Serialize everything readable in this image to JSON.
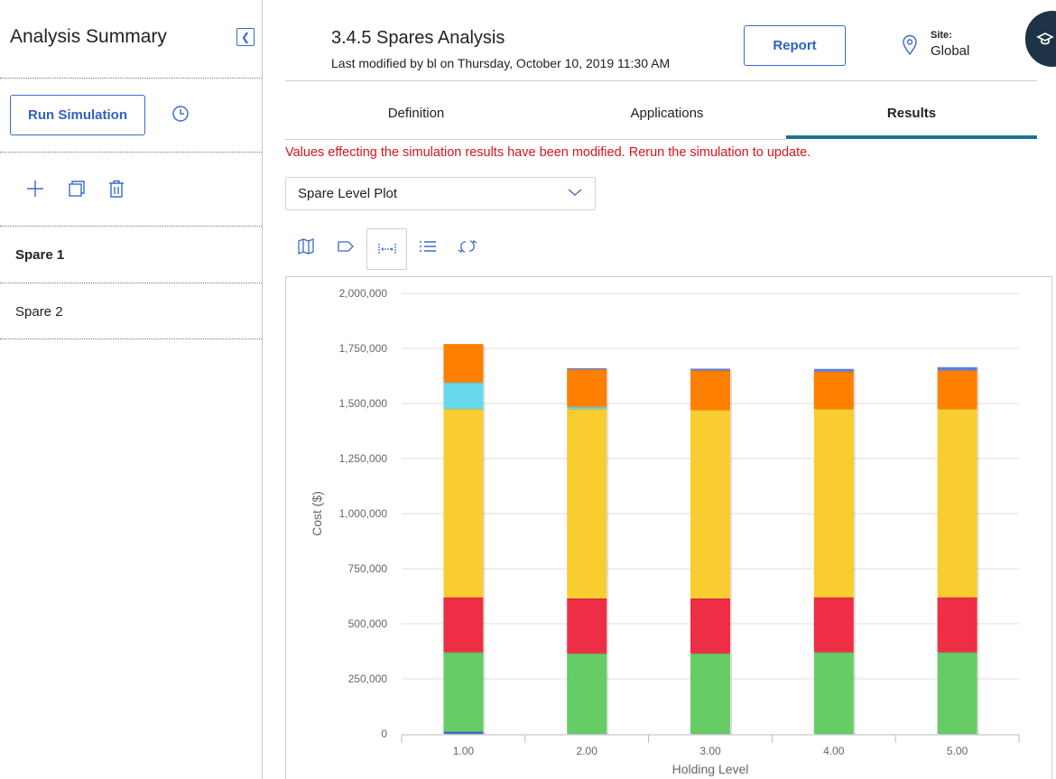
{
  "sidebar": {
    "title": "Analysis Summary",
    "run_label": "Run Simulation",
    "items": [
      {
        "label": "Spare 1",
        "active": true
      },
      {
        "label": "Spare 2",
        "active": false
      }
    ]
  },
  "header": {
    "title": "3.4.5 Spares Analysis",
    "subtitle": "Last modified by bl on Thursday, October 10, 2019 11:30 AM",
    "report_label": "Report",
    "site_label": "Site:",
    "site_value": "Global"
  },
  "tabs": [
    {
      "label": "Definition",
      "active": false
    },
    {
      "label": "Applications",
      "active": false
    },
    {
      "label": "Results",
      "active": true
    }
  ],
  "warning": "Values effecting the simulation results have been modified. Rerun the simulation to update.",
  "plot_select": {
    "value": "Spare Level Plot"
  },
  "colors": {
    "accent": "#2f62c2",
    "tab_indicator": "#16788f",
    "warning": "#d9141e",
    "series": [
      "#3b6fd0",
      "#66cc66",
      "#ee2e45",
      "#f9cd2f",
      "#66d9ee",
      "#ff7f00",
      "#5b7fe0"
    ]
  },
  "chart_data": {
    "type": "bar",
    "stacked": true,
    "categories": [
      "1.00",
      "2.00",
      "3.00",
      "4.00",
      "5.00"
    ],
    "xlabel": "Holding Level",
    "ylabel": "Cost ($)",
    "ylim": [
      0,
      2000000
    ],
    "yticks": [
      "0",
      "250,000",
      "500,000",
      "750,000",
      "1,000,000",
      "1,250,000",
      "1,500,000",
      "1,750,000",
      "2,000,000"
    ],
    "grid": true,
    "series": [
      {
        "color": "#3b6fd0",
        "values": [
          10000,
          0,
          0,
          0,
          0
        ]
      },
      {
        "color": "#66cc66",
        "values": [
          360000,
          365000,
          365000,
          370000,
          370000
        ]
      },
      {
        "color": "#ee2e45",
        "values": [
          250000,
          250000,
          250000,
          250000,
          250000
        ]
      },
      {
        "color": "#f9cd2f",
        "values": [
          855000,
          860000,
          855000,
          855000,
          855000
        ]
      },
      {
        "color": "#66d9ee",
        "values": [
          120000,
          10000,
          0,
          0,
          0
        ]
      },
      {
        "color": "#ff7f00",
        "values": [
          175000,
          170000,
          180000,
          170000,
          175000
        ]
      },
      {
        "color": "#5b7fe0",
        "values": [
          0,
          5000,
          8000,
          12000,
          15000
        ]
      }
    ]
  }
}
